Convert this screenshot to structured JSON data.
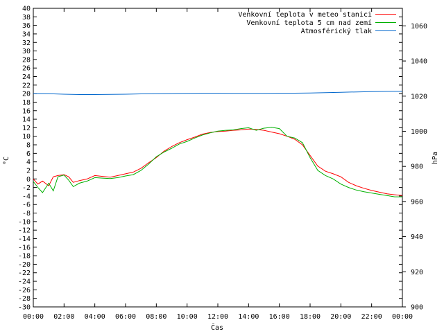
{
  "chart_data": {
    "type": "line",
    "title": "",
    "xlabel": "Čas",
    "ylabel": "°C",
    "y2label": "hPa",
    "x_ticks": [
      "00:00",
      "02:00",
      "04:00",
      "06:00",
      "08:00",
      "10:00",
      "12:00",
      "14:00",
      "16:00",
      "18:00",
      "20:00",
      "22:00",
      "00:00"
    ],
    "x_range_hours": [
      0,
      24
    ],
    "ylim": [
      -30,
      40
    ],
    "y_step": 2,
    "y2lim": [
      900,
      1070
    ],
    "y2_ticks": [
      900,
      920,
      940,
      960,
      980,
      1000,
      1020,
      1040,
      1060
    ],
    "grid": false,
    "legend_position": "top-right",
    "series": [
      {
        "name": "Venkovní teplota v meteo stanici",
        "axis": "left",
        "color": "#ff0000",
        "x": [
          0,
          0.3,
          0.6,
          1.0,
          1.3,
          1.6,
          2.0,
          2.3,
          2.6,
          3.0,
          3.5,
          4.0,
          4.5,
          5.0,
          5.5,
          6.0,
          6.5,
          7.0,
          7.5,
          8.0,
          8.5,
          9.0,
          9.5,
          10.0,
          10.5,
          11.0,
          11.5,
          12.0,
          12.5,
          13.0,
          13.5,
          14.0,
          14.5,
          15.0,
          15.5,
          16.0,
          16.5,
          17.0,
          17.5,
          18.0,
          18.5,
          19.0,
          19.5,
          20.0,
          20.5,
          21.0,
          21.5,
          22.0,
          22.5,
          23.0,
          23.5,
          24.0
        ],
        "values": [
          0,
          -1.2,
          -0.5,
          -1.6,
          0.5,
          0.8,
          1.0,
          0.5,
          -0.8,
          -0.4,
          0,
          0.8,
          0.6,
          0.4,
          0.8,
          1.2,
          1.6,
          2.5,
          3.8,
          5.0,
          6.5,
          7.6,
          8.5,
          9.2,
          9.8,
          10.5,
          10.9,
          11.1,
          11.2,
          11.4,
          11.5,
          11.7,
          11.6,
          11.4,
          11.0,
          10.6,
          10.0,
          9.3,
          8.0,
          5.5,
          3.0,
          1.8,
          1.2,
          0.5,
          -0.8,
          -1.6,
          -2.2,
          -2.7,
          -3.1,
          -3.5,
          -3.7,
          -3.9
        ]
      },
      {
        "name": "Venkovní teplota 5 cm nad zemí",
        "axis": "left",
        "color": "#00b000",
        "x": [
          0,
          0.3,
          0.6,
          1.0,
          1.3,
          1.6,
          2.0,
          2.3,
          2.6,
          3.0,
          3.5,
          4.0,
          4.5,
          5.0,
          5.5,
          6.0,
          6.5,
          7.0,
          7.5,
          8.0,
          8.5,
          9.0,
          9.5,
          10.0,
          10.5,
          11.0,
          11.5,
          12.0,
          12.5,
          13.0,
          13.5,
          14.0,
          14.5,
          15.0,
          15.5,
          16.0,
          16.5,
          17.0,
          17.5,
          18.0,
          18.5,
          19.0,
          19.5,
          20.0,
          20.5,
          21.0,
          21.5,
          22.0,
          22.5,
          23.0,
          23.5,
          24.0
        ],
        "values": [
          -0.6,
          -2.0,
          -3.2,
          -1.0,
          -2.8,
          0.5,
          0.9,
          -0.3,
          -1.8,
          -1.0,
          -0.5,
          0.3,
          0.2,
          0.1,
          0.3,
          0.7,
          1.0,
          2.0,
          3.5,
          5.2,
          6.3,
          7.2,
          8.2,
          8.8,
          9.6,
          10.3,
          10.8,
          11.2,
          11.4,
          11.5,
          11.8,
          12.0,
          11.4,
          11.9,
          12.1,
          11.8,
          10.0,
          9.6,
          8.5,
          5.0,
          2.0,
          0.8,
          0,
          -1.2,
          -2.0,
          -2.6,
          -3.0,
          -3.3,
          -3.6,
          -3.9,
          -4.2,
          -4.2
        ]
      },
      {
        "name": "Atmosférický tlak",
        "axis": "right",
        "color": "#0066cc",
        "x": [
          0,
          1,
          2,
          3,
          4,
          5,
          6,
          7,
          8,
          9,
          10,
          11,
          12,
          13,
          14,
          15,
          16,
          17,
          18,
          19,
          20,
          21,
          22,
          23,
          24
        ],
        "values": [
          1021.5,
          1021.4,
          1021.1,
          1020.9,
          1020.9,
          1021.0,
          1021.1,
          1021.3,
          1021.4,
          1021.5,
          1021.6,
          1021.7,
          1021.7,
          1021.6,
          1021.6,
          1021.6,
          1021.7,
          1021.7,
          1021.8,
          1022.0,
          1022.2,
          1022.4,
          1022.6,
          1022.7,
          1022.8
        ]
      }
    ]
  }
}
